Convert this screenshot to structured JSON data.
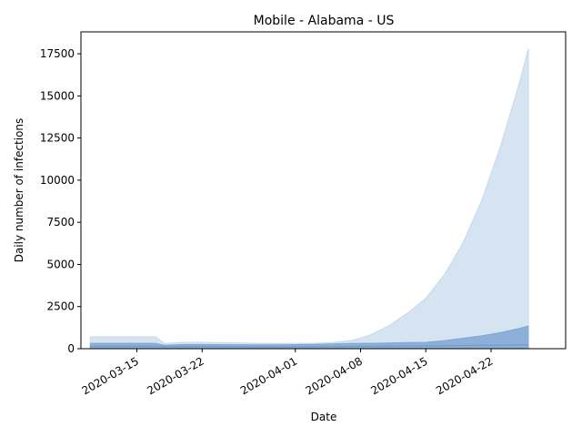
{
  "chart_data": {
    "type": "area",
    "title": "Mobile - Alabama - US",
    "xlabel": "Date",
    "ylabel": "Daily number of infections",
    "xlim": [
      "2020-03-09",
      "2020-04-30"
    ],
    "ylim": [
      0,
      18800
    ],
    "x_ticks": [
      "2020-03-15",
      "2020-03-22",
      "2020-04-01",
      "2020-04-08",
      "2020-04-15",
      "2020-04-22"
    ],
    "y_ticks": [
      0,
      2500,
      5000,
      7500,
      10000,
      12500,
      15000,
      17500
    ],
    "grid": false,
    "x_tick_rotation": 30,
    "x": [
      "2020-03-10",
      "2020-03-14",
      "2020-03-17",
      "2020-03-18",
      "2020-03-20",
      "2020-03-22",
      "2020-03-25",
      "2020-03-28",
      "2020-03-31",
      "2020-04-03",
      "2020-04-05",
      "2020-04-07",
      "2020-04-09",
      "2020-04-11",
      "2020-04-13",
      "2020-04-15",
      "2020-04-17",
      "2020-04-19",
      "2020-04-21",
      "2020-04-23",
      "2020-04-25",
      "2020-04-26"
    ],
    "series": [
      {
        "band": "outer",
        "color": "#c5d9ec",
        "lower": [
          0,
          0,
          0,
          0,
          0,
          0,
          0,
          0,
          0,
          0,
          0,
          0,
          0,
          0,
          0,
          0,
          0,
          0,
          0,
          0,
          0,
          0
        ],
        "upper": [
          700,
          700,
          700,
          300,
          380,
          380,
          350,
          320,
          320,
          320,
          360,
          480,
          800,
          1350,
          2100,
          3000,
          4400,
          6300,
          8800,
          12000,
          15700,
          17800
        ]
      },
      {
        "band": "inner",
        "color": "#7fa7d4",
        "lower": [
          0,
          0,
          0,
          0,
          0,
          0,
          0,
          0,
          0,
          0,
          0,
          0,
          0,
          0,
          0,
          0,
          0,
          0,
          0,
          0,
          0,
          0
        ],
        "upper": [
          320,
          320,
          320,
          200,
          250,
          250,
          240,
          230,
          240,
          260,
          280,
          310,
          320,
          340,
          360,
          380,
          480,
          620,
          760,
          950,
          1200,
          1350
        ]
      },
      {
        "band": "median",
        "color": "#2f6db5",
        "values": [
          150,
          150,
          150,
          120,
          130,
          130,
          120,
          110,
          110,
          115,
          120,
          130,
          140,
          150,
          160,
          170,
          180,
          190,
          200,
          210,
          220,
          230
        ]
      }
    ]
  }
}
